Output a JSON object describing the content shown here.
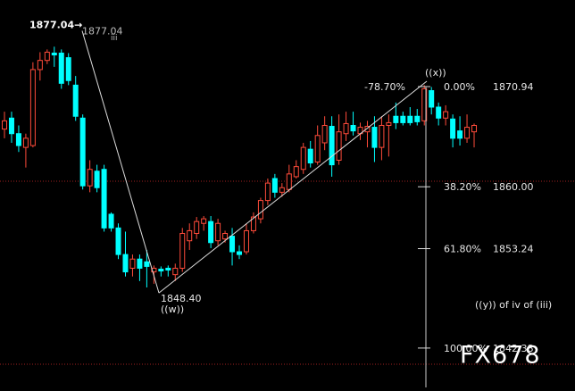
{
  "chart_data": {
    "type": "candlestick",
    "up_color": "#ff4b3a",
    "down_color": "#00ffff",
    "ylim": [
      1838.08,
      1880.4
    ],
    "open": [
      1866.3,
      1867.5,
      1865.8,
      1864.3,
      1864.5,
      1872.8,
      1873.8,
      1874.6,
      1874.6,
      1874.1,
      1871.1,
      1867.5,
      1860.1,
      1861.7,
      1861.9,
      1857.0,
      1855.5,
      1852.6,
      1851.1,
      1852.1,
      1851.8,
      1850.7,
      1851.0,
      1851.1,
      1850.4,
      1851.1,
      1854.1,
      1854.9,
      1856.0,
      1856.2,
      1854.1,
      1854.3,
      1854.6,
      1852.9,
      1852.9,
      1855.2,
      1856.5,
      1858.5,
      1860.9,
      1859.4,
      1859.7,
      1861.1,
      1861.9,
      1864.1,
      1862.7,
      1864.8,
      1866.6,
      1862.9,
      1865.8,
      1866.7,
      1865.8,
      1866.0,
      1866.5,
      1864.3,
      1866.7,
      1867.7,
      1867.7,
      1867.7,
      1867.7,
      1867.2,
      1870.5,
      1868.7,
      1867.5,
      1867.4,
      1866.1,
      1865.3,
      1866.0
    ],
    "high": [
      1868.2,
      1868.2,
      1866.7,
      1865.8,
      1873.6,
      1874.7,
      1875.0,
      1875.3,
      1875.0,
      1874.6,
      1872.1,
      1867.9,
      1862.9,
      1862.4,
      1862.4,
      1857.2,
      1856.0,
      1855.1,
      1852.6,
      1852.6,
      1853.1,
      1851.4,
      1851.3,
      1851.4,
      1851.6,
      1855.5,
      1856.0,
      1856.7,
      1856.8,
      1856.8,
      1856.5,
      1855.2,
      1855.5,
      1853.6,
      1856.0,
      1857.2,
      1858.8,
      1860.9,
      1861.4,
      1860.4,
      1862.4,
      1862.9,
      1864.8,
      1865.0,
      1866.7,
      1867.7,
      1867.7,
      1867.9,
      1868.2,
      1868.2,
      1867.0,
      1867.2,
      1867.7,
      1867.7,
      1867.9,
      1869.2,
      1868.2,
      1868.7,
      1868.5,
      1871.1,
      1870.9,
      1869.2,
      1868.9,
      1867.9,
      1867.7,
      1867.9,
      1866.9
    ],
    "low": [
      1865.3,
      1864.8,
      1863.8,
      1862.1,
      1864.3,
      1871.6,
      1873.4,
      1873.1,
      1870.7,
      1871.1,
      1867.2,
      1859.7,
      1859.4,
      1859.4,
      1855.1,
      1855.1,
      1852.1,
      1850.2,
      1850.2,
      1849.7,
      1849.0,
      1849.4,
      1850.2,
      1850.2,
      1849.7,
      1850.7,
      1853.1,
      1854.3,
      1855.2,
      1853.3,
      1853.6,
      1853.9,
      1851.4,
      1852.1,
      1852.6,
      1854.9,
      1856.0,
      1858.0,
      1858.8,
      1858.9,
      1859.4,
      1860.9,
      1861.4,
      1862.1,
      1862.4,
      1864.0,
      1861.1,
      1862.4,
      1865.0,
      1865.6,
      1865.1,
      1864.3,
      1862.7,
      1862.9,
      1863.3,
      1866.3,
      1866.7,
      1866.7,
      1866.7,
      1866.7,
      1867.9,
      1866.7,
      1866.7,
      1864.3,
      1864.5,
      1864.8,
      1864.3
    ],
    "close": [
      1867.2,
      1865.8,
      1864.5,
      1865.3,
      1872.8,
      1873.8,
      1874.7,
      1874.4,
      1871.3,
      1871.6,
      1867.7,
      1860.1,
      1861.9,
      1859.9,
      1855.5,
      1855.5,
      1852.6,
      1850.7,
      1852.1,
      1851.1,
      1851.3,
      1851.1,
      1850.8,
      1850.9,
      1851.1,
      1854.9,
      1855.2,
      1856.2,
      1856.5,
      1853.9,
      1856.0,
      1854.9,
      1852.9,
      1852.6,
      1855.2,
      1856.7,
      1858.5,
      1860.4,
      1859.4,
      1859.9,
      1861.4,
      1862.2,
      1864.3,
      1862.6,
      1865.6,
      1866.7,
      1862.4,
      1866.0,
      1866.9,
      1866.1,
      1866.5,
      1866.6,
      1864.3,
      1866.7,
      1867.0,
      1867.0,
      1867.0,
      1867.0,
      1867.1,
      1870.7,
      1868.7,
      1867.5,
      1868.2,
      1865.3,
      1865.3,
      1866.5,
      1866.7
    ],
    "wave_high": {
      "value": 1877.04,
      "arrow_label": "1877.04→",
      "label": "1877.04",
      "wave": "iii"
    },
    "wave_low": {
      "value": 1848.4,
      "label": "1848.40",
      "wave": "((w))"
    },
    "wave_x": {
      "wave": "((x))",
      "retracement": "-78.70%"
    },
    "fib_levels": [
      {
        "ratio": "0.00%",
        "price": 1870.94
      },
      {
        "ratio": "38.20%",
        "price": {
          "value": 1860,
          "label": "1860.00"
        }
      },
      {
        "ratio": "61.80%",
        "price": 1853.24
      },
      {
        "ratio": "100.00%",
        "price": 1842.38
      }
    ],
    "note": "((y)) of iv of (iii)",
    "watermark": "FX678"
  }
}
